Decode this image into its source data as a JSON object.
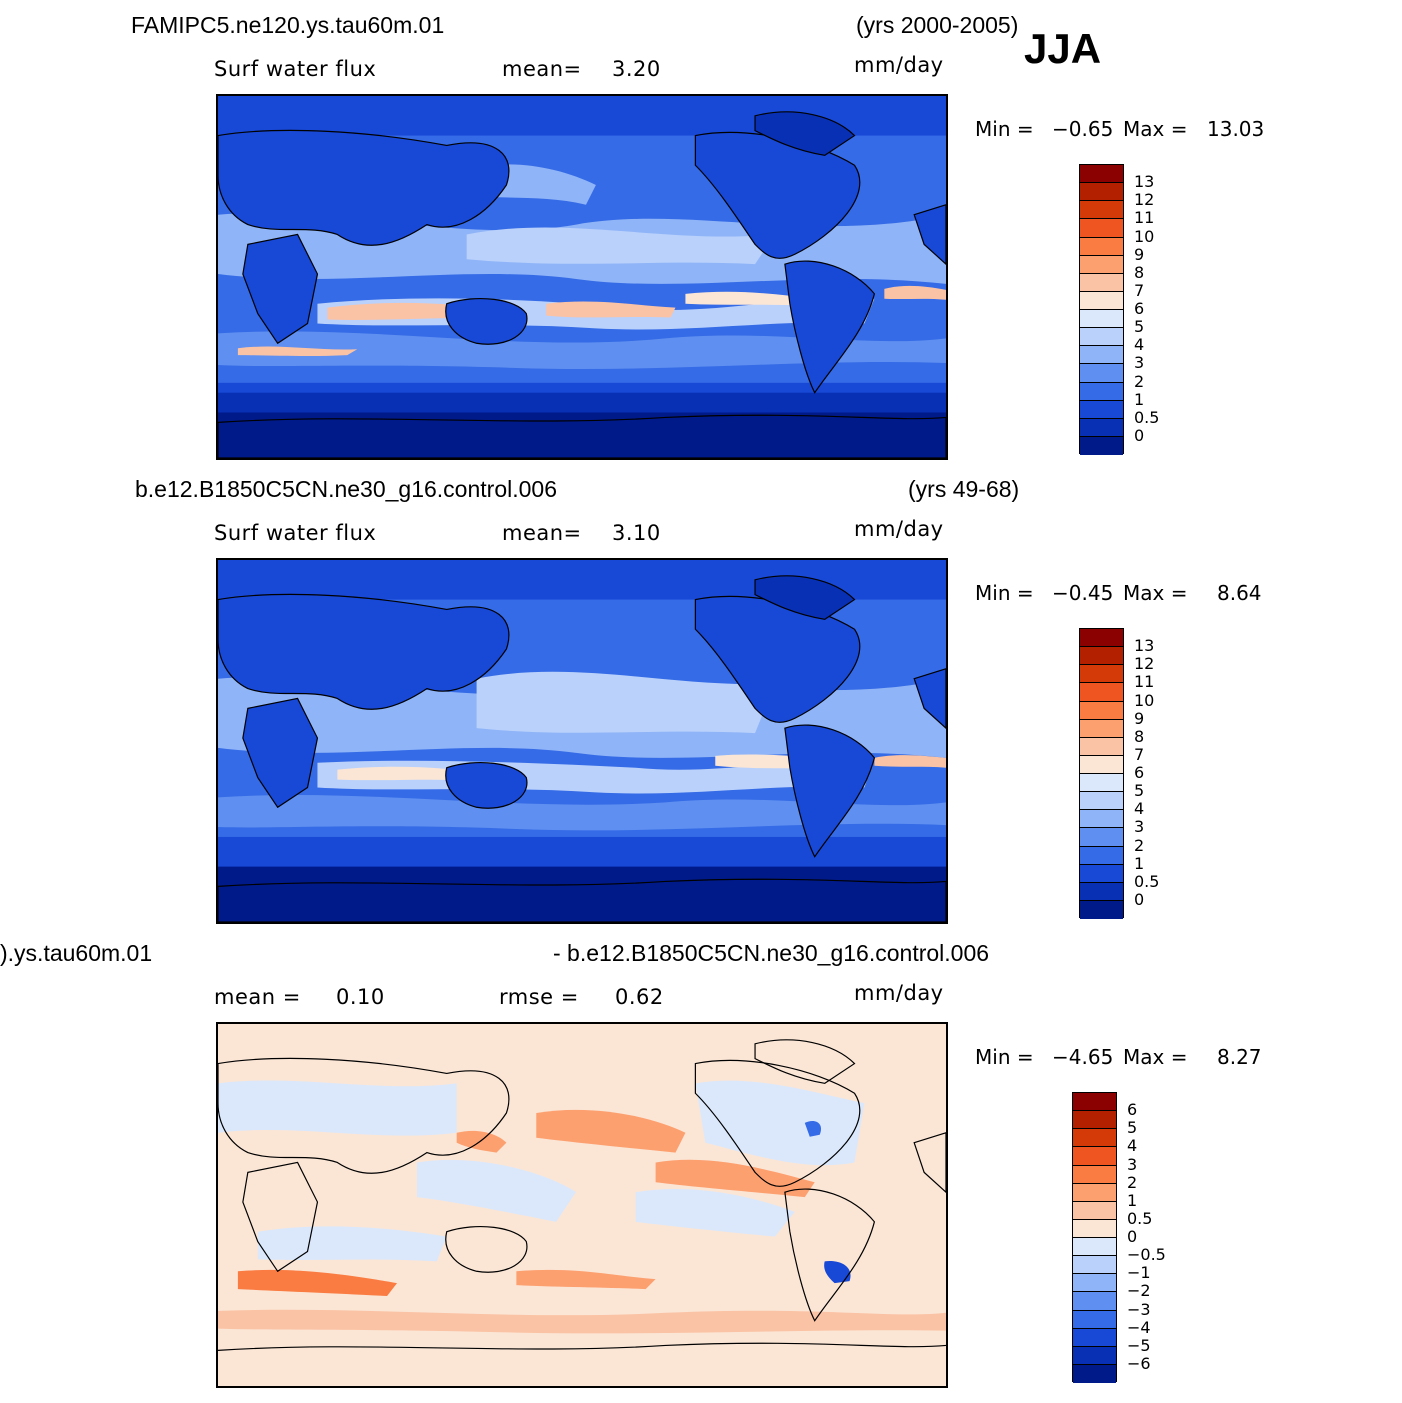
{
  "season": "JJA",
  "units": "mm/day",
  "panels": [
    {
      "case": "FAMIPC5.ne120.ys.tau60m.01",
      "years": "(yrs 2000-2005)",
      "variable": "Surf  water  flux",
      "stat1_label": "mean=",
      "stat1_value": "3.20",
      "min_label": "Min  =",
      "min_value": "−0.65",
      "max_label": "Max  =",
      "max_value": "13.03"
    },
    {
      "case": "b.e12.B1850C5CN.ne30_g16.control.006",
      "years": "(yrs 49-68)",
      "variable": "Surf  water  flux",
      "stat1_label": "mean=",
      "stat1_value": "3.10",
      "min_label": "Min  =",
      "min_value": "−0.45",
      "max_label": "Max  =",
      "max_value": "8.64"
    },
    {
      "case_left": ").ys.tau60m.01",
      "case_right": "- b.e12.B1850C5CN.ne30_g16.control.006",
      "stat1_label": "mean  =",
      "stat1_value": "0.10",
      "stat2_label": "rmse  =",
      "stat2_value": "0.62",
      "min_label": "Min  =",
      "min_value": "−4.65",
      "max_label": "Max  =",
      "max_value": "8.27"
    }
  ],
  "colorbar_abs": {
    "labels": [
      "13",
      "12",
      "11",
      "10",
      "9",
      "8",
      "7",
      "6",
      "5",
      "4",
      "3",
      "2",
      "1",
      "0.5",
      "0"
    ],
    "colors": [
      "#8b0000",
      "#b22000",
      "#d43a08",
      "#ee5520",
      "#fa7c42",
      "#fda070",
      "#fbc3a5",
      "#fbe6d6",
      "#dbe8fb",
      "#b9d1fb",
      "#8fb4f7",
      "#5f8ff0",
      "#356be6",
      "#1848d6",
      "#0830b4",
      "#001a8a"
    ]
  },
  "colorbar_diff": {
    "labels": [
      "6",
      "5",
      "4",
      "3",
      "2",
      "1",
      "0.5",
      "0",
      "−0.5",
      "−1",
      "−2",
      "−3",
      "−4",
      "−5",
      "−6"
    ],
    "colors": [
      "#8b0000",
      "#b22000",
      "#d43a08",
      "#ee5520",
      "#fa7c42",
      "#fda070",
      "#fbc3a5",
      "#fbe6d6",
      "#dbe8fb",
      "#b9d1fb",
      "#8fb4f7",
      "#5f8ff0",
      "#356be6",
      "#1848d6",
      "#0830b4",
      "#001a8a"
    ]
  }
}
